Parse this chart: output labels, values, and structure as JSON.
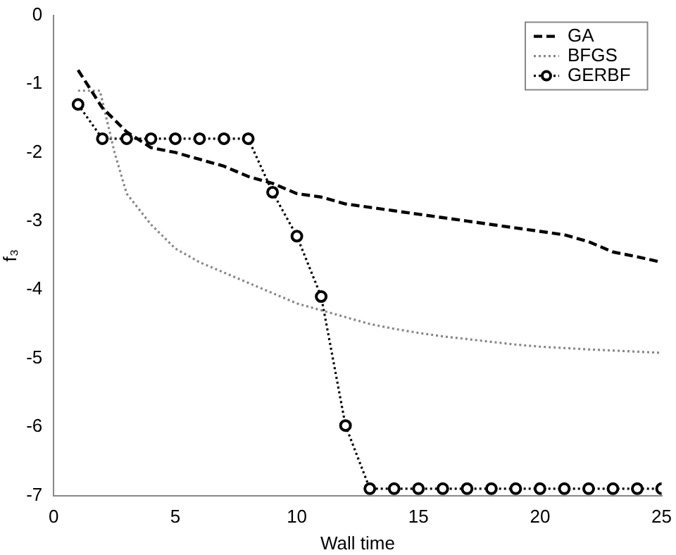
{
  "chart_data": {
    "type": "line",
    "xlabel": "Wall time",
    "ylabel": "f₃",
    "xlim": [
      0,
      25
    ],
    "xticks": [
      0,
      5,
      10,
      15,
      20,
      25
    ],
    "ylim": [
      -7,
      0
    ],
    "yticks": [
      -7,
      -6,
      -5,
      -4,
      -3,
      -2,
      -1,
      0
    ],
    "grid": false,
    "legend": "top right",
    "series": [
      {
        "name": "GA",
        "color": "#000000",
        "line_style": "dashed",
        "marker": "none",
        "x": [
          1,
          2,
          3,
          4,
          5,
          6,
          7,
          8,
          9,
          10,
          11,
          12,
          13,
          14,
          15,
          16,
          17,
          18,
          19,
          20,
          21,
          22,
          23,
          24,
          25
        ],
        "values": [
          -0.8,
          -1.35,
          -1.7,
          -1.93,
          -2.0,
          -2.1,
          -2.2,
          -2.35,
          -2.45,
          -2.6,
          -2.65,
          -2.75,
          -2.8,
          -2.85,
          -2.9,
          -2.95,
          -3.0,
          -3.05,
          -3.1,
          -3.15,
          -3.2,
          -3.3,
          -3.45,
          -3.52,
          -3.6
        ]
      },
      {
        "name": "BFGS",
        "color": "#888888",
        "line_style": "dotted",
        "marker": "none",
        "x": [
          1,
          1.9,
          2.5,
          3,
          4,
          5,
          6,
          7,
          8,
          9,
          10,
          11,
          12,
          13,
          14,
          15,
          16,
          17,
          18,
          19,
          20,
          22,
          25
        ],
        "values": [
          -1.1,
          -1.1,
          -2.0,
          -2.6,
          -3.05,
          -3.4,
          -3.6,
          -3.75,
          -3.9,
          -4.05,
          -4.2,
          -4.3,
          -4.4,
          -4.5,
          -4.57,
          -4.63,
          -4.68,
          -4.72,
          -4.76,
          -4.8,
          -4.83,
          -4.87,
          -4.92
        ]
      },
      {
        "name": "GERBF",
        "color": "#000000",
        "line_style": "dotted",
        "marker": "circle",
        "x": [
          1,
          2,
          3,
          4,
          5,
          6,
          7,
          8,
          9,
          10,
          11,
          12,
          13,
          14,
          15,
          16,
          17,
          18,
          19,
          20,
          21,
          22,
          23,
          24,
          25
        ],
        "values": [
          -1.3,
          -1.8,
          -1.8,
          -1.8,
          -1.8,
          -1.8,
          -1.8,
          -1.8,
          -2.58,
          -3.22,
          -4.1,
          -5.98,
          -6.9,
          -6.9,
          -6.9,
          -6.9,
          -6.9,
          -6.9,
          -6.9,
          -6.9,
          -6.9,
          -6.9,
          -6.9,
          -6.9,
          -6.9
        ]
      }
    ]
  }
}
